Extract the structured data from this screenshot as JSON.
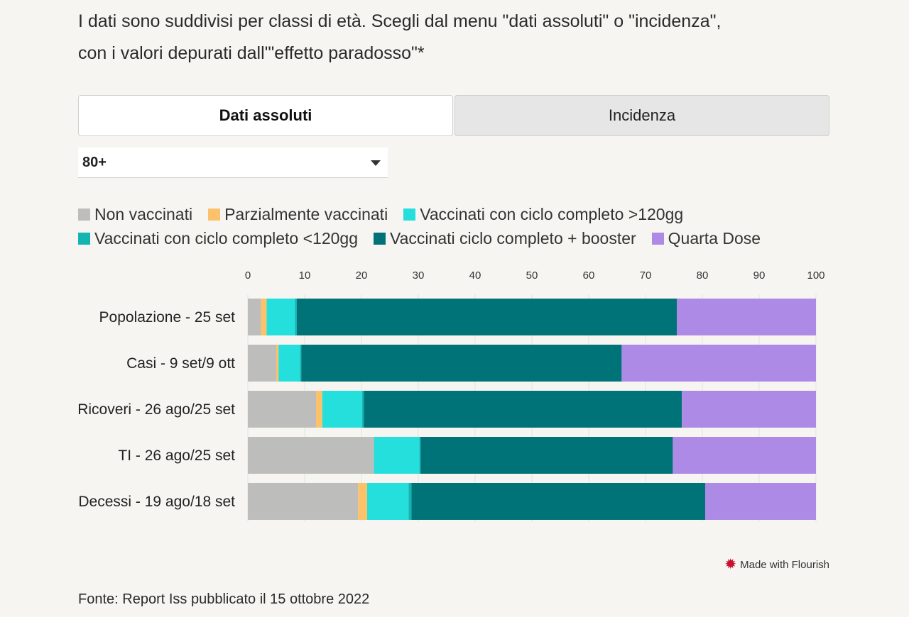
{
  "intro": {
    "line1": "I dati sono suddivisi per classi di età. Scegli dal menu \"dati assoluti\" o \"incidenza\",",
    "line2": "con i valori depurati dall'\"effetto paradosso\"*"
  },
  "toggle": {
    "option1": "Dati assoluti",
    "option2": "Incidenza",
    "selected": "Dati assoluti"
  },
  "dropdown": {
    "value": "80+"
  },
  "colors": {
    "non_vaccinati": "#bdbdbb",
    "parzialmente": "#fbc26b",
    "ciclo_gt120": "#24dfdc",
    "ciclo_lt120": "#12b5b1",
    "booster": "#007378",
    "quarta": "#ad8ae6"
  },
  "chart_data": {
    "type": "bar",
    "orientation": "horizontal",
    "stacked": true,
    "categories": [
      "Popolazione - 25 set",
      "Casi - 9 set/9 ott",
      "Ricoveri - 26 ago/25 set",
      "TI - 26 ago/25 set",
      "Decessi - 19 ago/18 set"
    ],
    "xlim": [
      0,
      100
    ],
    "xticks": [
      0,
      10,
      20,
      30,
      40,
      50,
      60,
      70,
      80,
      90,
      100
    ],
    "grid": true,
    "legend_position": "top",
    "series": [
      {
        "name": "Non vaccinati",
        "color": "#bdbdbb",
        "values": [
          2.3,
          5.0,
          12.0,
          22.2,
          19.4
        ]
      },
      {
        "name": "Parzialmente vaccinati",
        "color": "#fbc26b",
        "values": [
          1.0,
          0.4,
          1.1,
          0.0,
          1.6
        ]
      },
      {
        "name": "Vaccinati con ciclo completo >120gg",
        "color": "#24dfdc",
        "values": [
          5.0,
          3.8,
          7.0,
          8.0,
          7.3
        ]
      },
      {
        "name": "Vaccinati con ciclo completo <120gg",
        "color": "#12b5b1",
        "values": [
          0.3,
          0.2,
          0.3,
          0.2,
          0.5
        ]
      },
      {
        "name": "Vaccinati ciclo completo + booster",
        "color": "#007378",
        "values": [
          66.9,
          56.4,
          56.0,
          44.4,
          51.7
        ]
      },
      {
        "name": "Quarta Dose",
        "color": "#ad8ae6",
        "values": [
          24.5,
          34.2,
          23.6,
          25.2,
          19.5
        ]
      }
    ]
  },
  "footer": {
    "credit": "Made with Flourish",
    "credit_icon": "flourish-logo-icon",
    "source": "Fonte: Report Iss pubblicato il 15 ottobre 2022"
  }
}
